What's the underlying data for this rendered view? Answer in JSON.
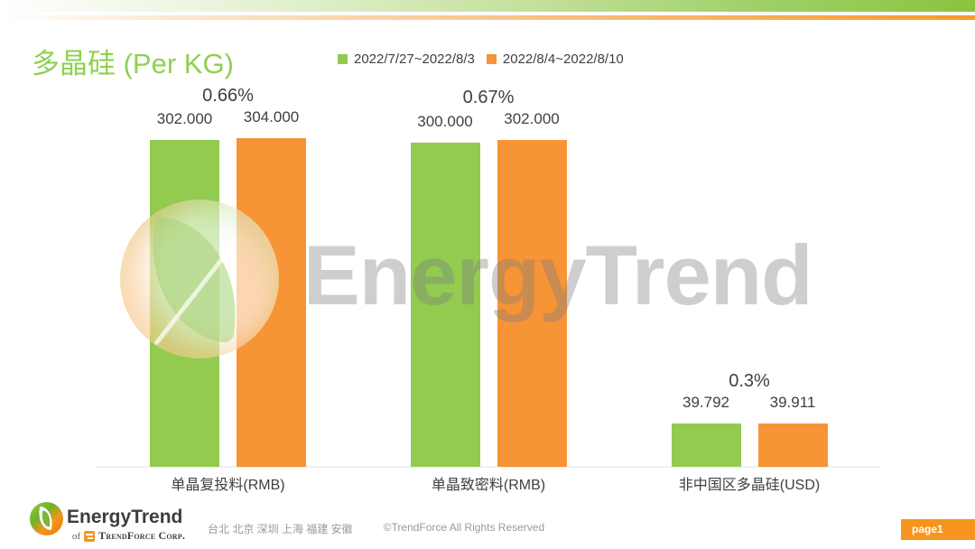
{
  "header": {
    "title": "多晶硅 (Per KG)"
  },
  "legend": {
    "items": [
      {
        "label": "2022/7/27~2022/8/3",
        "color": "#92cb50"
      },
      {
        "label": "2022/8/4~2022/8/10",
        "color": "#f79435"
      }
    ]
  },
  "chart_data": {
    "type": "bar",
    "title": "多晶硅 (Per KG)",
    "unit": "Per KG",
    "categories": [
      "单晶复投料(RMB)",
      "单晶致密料(RMB)",
      "非中国区多晶硅(USD)"
    ],
    "series": [
      {
        "name": "2022/7/27~2022/8/3",
        "color": "#92cb50",
        "values": [
          302.0,
          300.0,
          39.792
        ],
        "labels": [
          "302.000",
          "300.000",
          "39.792"
        ]
      },
      {
        "name": "2022/8/4~2022/8/10",
        "color": "#f79435",
        "values": [
          304.0,
          302.0,
          39.911
        ],
        "labels": [
          "304.000",
          "302.000",
          "39.911"
        ]
      }
    ],
    "change_labels": [
      "0.66%",
      "0.67%",
      "0.3%"
    ],
    "baseline": 0,
    "y_axis_visible": false,
    "grid": false,
    "legend_position": "top"
  },
  "watermark": {
    "text": "EnergyTrend"
  },
  "footer": {
    "logo_text": "EnergyTrend",
    "logo_sub_prefix": "of",
    "logo_sub_brand": "TrendForce Corp.",
    "locations": "台北 北京 深圳 上海 福建 安徽",
    "copyright": "©TrendForce All Rights Reserved",
    "page_badge": "page1"
  }
}
